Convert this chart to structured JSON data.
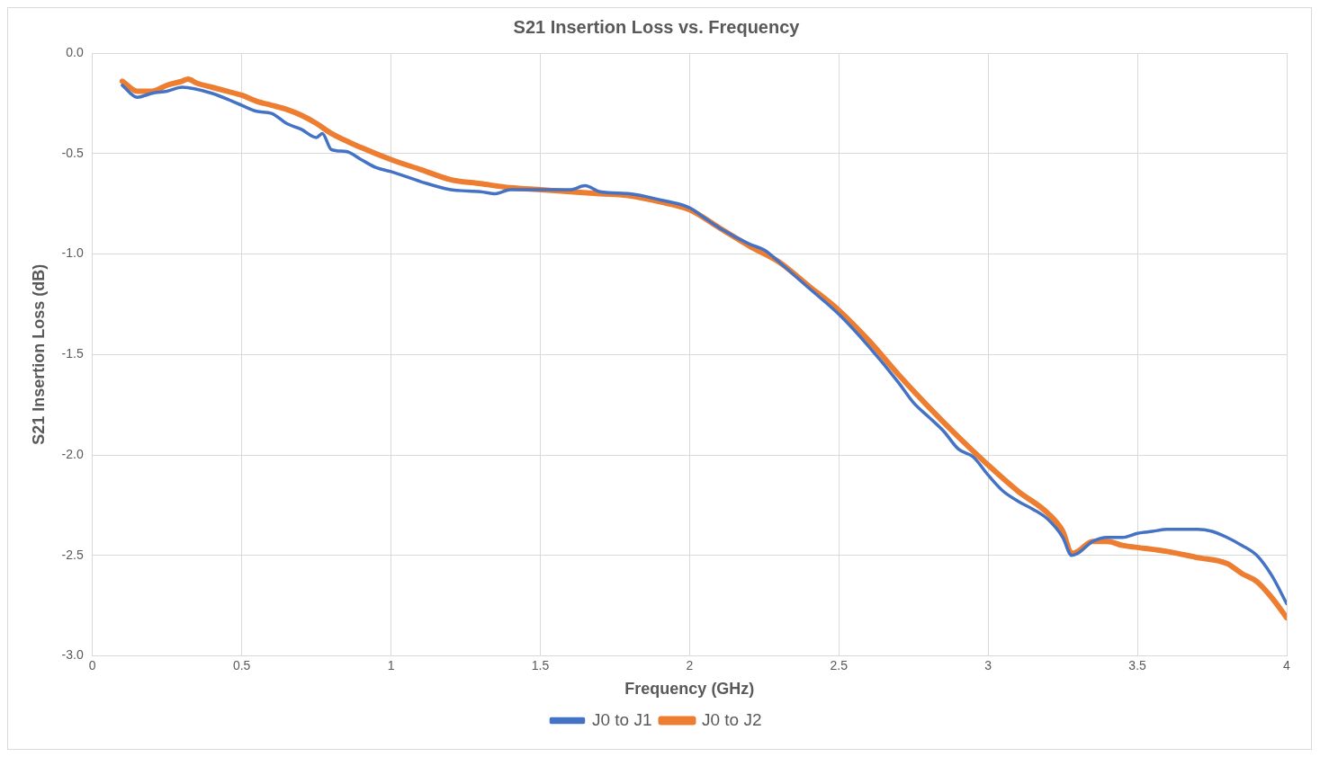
{
  "chart_data": {
    "type": "line",
    "title": "S21 Insertion Loss vs. Frequency",
    "xlabel": "Frequency (GHz)",
    "ylabel": "S21 Insertion Loss (dB)",
    "xlim": [
      0,
      4
    ],
    "xticks": [
      0,
      0.5,
      1,
      1.5,
      2,
      2.5,
      3,
      3.5,
      4
    ],
    "ylim": [
      -3,
      0
    ],
    "yticks": [
      {
        "value": 0,
        "label": "0.0"
      },
      {
        "value": -0.5,
        "label": "-0.5"
      },
      {
        "value": -1,
        "label": "-1.0"
      },
      {
        "value": -1.5,
        "label": "-1.5"
      },
      {
        "value": -2,
        "label": "-2.0"
      },
      {
        "value": -2.5,
        "label": "-2.5"
      },
      {
        "value": -3,
        "label": "-3.0"
      }
    ],
    "grid": true,
    "legend": "bottom",
    "marker": "none",
    "line_style": "solid",
    "series": [
      {
        "name": "J0 to J1",
        "color": "#4472c4",
        "x": [
          0.1,
          0.15,
          0.2,
          0.25,
          0.3,
          0.4,
          0.5,
          0.55,
          0.6,
          0.65,
          0.7,
          0.75,
          0.77,
          0.8,
          0.85,
          0.9,
          0.95,
          1.0,
          1.1,
          1.2,
          1.3,
          1.35,
          1.4,
          1.5,
          1.6,
          1.65,
          1.7,
          1.8,
          1.9,
          2.0,
          2.05,
          2.1,
          2.2,
          2.25,
          2.3,
          2.4,
          2.5,
          2.6,
          2.7,
          2.75,
          2.8,
          2.85,
          2.9,
          2.95,
          3.0,
          3.05,
          3.1,
          3.15,
          3.2,
          3.25,
          3.28,
          3.3,
          3.35,
          3.4,
          3.45,
          3.5,
          3.55,
          3.6,
          3.65,
          3.7,
          3.75,
          3.8,
          3.85,
          3.9,
          3.95,
          4.0
        ],
        "values": [
          -0.16,
          -0.22,
          -0.2,
          -0.19,
          -0.17,
          -0.2,
          -0.26,
          -0.29,
          -0.3,
          -0.35,
          -0.38,
          -0.42,
          -0.4,
          -0.48,
          -0.49,
          -0.53,
          -0.57,
          -0.59,
          -0.64,
          -0.68,
          -0.69,
          -0.7,
          -0.68,
          -0.68,
          -0.68,
          -0.66,
          -0.69,
          -0.7,
          -0.73,
          -0.77,
          -0.82,
          -0.87,
          -0.95,
          -0.98,
          -1.04,
          -1.17,
          -1.3,
          -1.46,
          -1.64,
          -1.74,
          -1.81,
          -1.88,
          -1.97,
          -2.01,
          -2.1,
          -2.18,
          -2.23,
          -2.27,
          -2.32,
          -2.41,
          -2.5,
          -2.49,
          -2.43,
          -2.41,
          -2.41,
          -2.39,
          -2.38,
          -2.37,
          -2.37,
          -2.37,
          -2.38,
          -2.41,
          -2.45,
          -2.5,
          -2.6,
          -2.74
        ]
      },
      {
        "name": "J0 to J2",
        "color": "#ed7d31",
        "x": [
          0.1,
          0.15,
          0.2,
          0.25,
          0.3,
          0.32,
          0.35,
          0.4,
          0.45,
          0.5,
          0.55,
          0.6,
          0.65,
          0.7,
          0.75,
          0.8,
          0.9,
          1.0,
          1.1,
          1.2,
          1.3,
          1.4,
          1.5,
          1.6,
          1.7,
          1.8,
          1.9,
          2.0,
          2.1,
          2.2,
          2.3,
          2.4,
          2.5,
          2.6,
          2.7,
          2.8,
          2.9,
          3.0,
          3.1,
          3.2,
          3.25,
          3.28,
          3.3,
          3.35,
          3.4,
          3.45,
          3.5,
          3.6,
          3.7,
          3.8,
          3.85,
          3.9,
          3.95,
          4.0
        ],
        "values": [
          -0.14,
          -0.19,
          -0.19,
          -0.16,
          -0.14,
          -0.13,
          -0.15,
          -0.17,
          -0.19,
          -0.21,
          -0.24,
          -0.26,
          -0.28,
          -0.31,
          -0.35,
          -0.4,
          -0.47,
          -0.53,
          -0.58,
          -0.63,
          -0.65,
          -0.67,
          -0.68,
          -0.69,
          -0.7,
          -0.71,
          -0.74,
          -0.78,
          -0.87,
          -0.96,
          -1.04,
          -1.16,
          -1.28,
          -1.43,
          -1.6,
          -1.76,
          -1.91,
          -2.05,
          -2.18,
          -2.29,
          -2.38,
          -2.49,
          -2.48,
          -2.43,
          -2.43,
          -2.45,
          -2.46,
          -2.48,
          -2.51,
          -2.54,
          -2.59,
          -2.63,
          -2.71,
          -2.81
        ]
      }
    ]
  }
}
